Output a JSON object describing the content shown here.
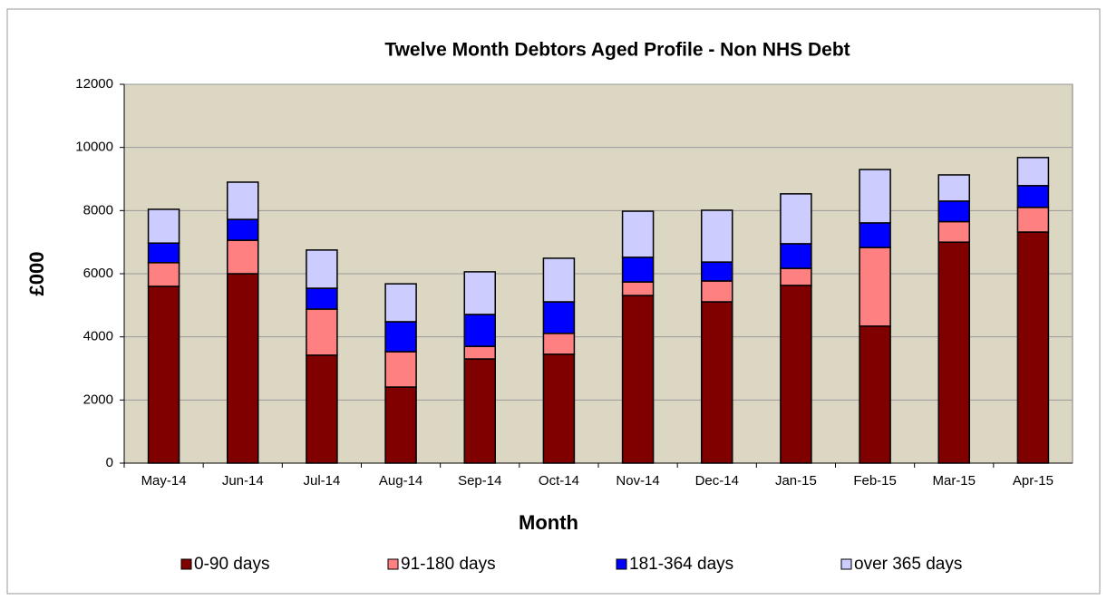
{
  "chart_data": {
    "type": "stacked_bar",
    "title": "Twelve Month Debtors Aged Profile - Non NHS Debt",
    "x_label": "Month",
    "y_label": "£000",
    "categories": [
      "May-14",
      "Jun-14",
      "Jul-14",
      "Aug-14",
      "Sep-14",
      "Oct-14",
      "Nov-14",
      "Dec-14",
      "Jan-15",
      "Feb-15",
      "Mar-15",
      "Apr-15"
    ],
    "series": [
      {
        "name": "0-90 days",
        "color": "#800000",
        "values": [
          5600,
          6000,
          3420,
          2410,
          3300,
          3450,
          5310,
          5110,
          5630,
          4340,
          7000,
          7320
        ]
      },
      {
        "name": "91-180 days",
        "color": "#ff8080",
        "values": [
          750,
          1060,
          1460,
          1120,
          400,
          660,
          430,
          660,
          540,
          2490,
          650,
          780
        ]
      },
      {
        "name": "181-364 days",
        "color": "#0000ff",
        "values": [
          620,
          660,
          660,
          950,
          1010,
          1000,
          780,
          600,
          780,
          780,
          650,
          690
        ]
      },
      {
        "name": "over 365 days",
        "color": "#ccccff",
        "values": [
          1070,
          1180,
          1210,
          1200,
          1350,
          1380,
          1460,
          1640,
          1580,
          1690,
          830,
          890
        ]
      }
    ],
    "ylim": [
      0,
      12000
    ],
    "yticks": [
      0,
      2000,
      4000,
      6000,
      8000,
      10000,
      12000
    ],
    "grid": true,
    "legend": "bottom"
  }
}
